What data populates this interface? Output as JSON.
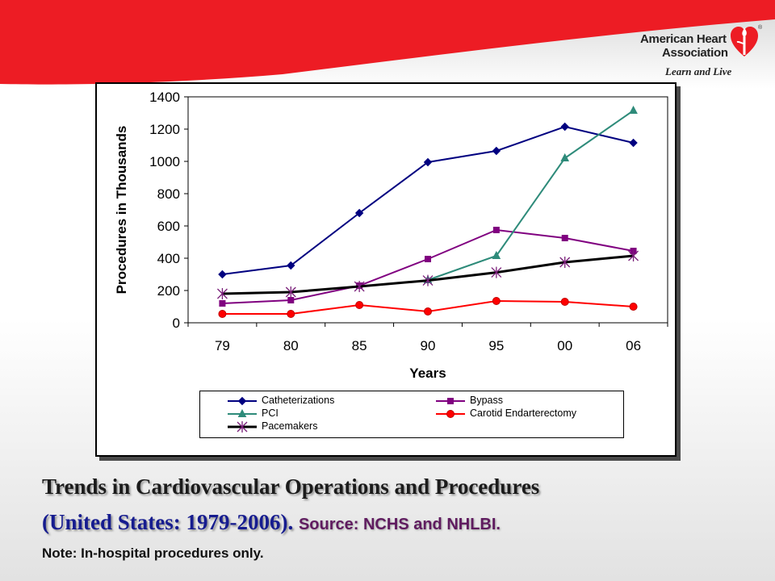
{
  "branding": {
    "org_line1": "American Heart",
    "org_line2": "Association",
    "tagline": "Learn and Live",
    "reg_mark": "®",
    "accent_color": "#ed1c24"
  },
  "caption": {
    "title_line1": "Trends in Cardiovascular Operations and Procedures",
    "title_line2": "(United States: 1979-2006).",
    "source": "Source: NCHS and NHLBI.",
    "note": "Note: In-hospital procedures only."
  },
  "chart_data": {
    "type": "line",
    "title": "",
    "xlabel": "Years",
    "ylabel": "Procedures in Thousands",
    "categories": [
      "79",
      "80",
      "85",
      "90",
      "95",
      "00",
      "06"
    ],
    "ylim": [
      0,
      1400
    ],
    "yticks": [
      "0",
      "200",
      "400",
      "600",
      "800",
      "1000",
      "1200",
      "1400"
    ],
    "grid": false,
    "legend_position": "bottom",
    "series": [
      {
        "name": "Catheterizations",
        "color": "#000080",
        "marker": "diamond",
        "values": [
          300,
          355,
          680,
          995,
          1065,
          1215,
          1115
        ]
      },
      {
        "name": "Bypass",
        "color": "#800080",
        "marker": "square",
        "values": [
          120,
          140,
          230,
          395,
          575,
          525,
          445
        ]
      },
      {
        "name": "PCI",
        "color": "#2e8b7a",
        "marker": "triangle",
        "values": [
          null,
          null,
          null,
          265,
          415,
          1020,
          1315
        ]
      },
      {
        "name": "Carotid Endarterectomy",
        "color": "#ff0000",
        "marker": "circle",
        "values": [
          55,
          55,
          110,
          70,
          135,
          130,
          100
        ]
      },
      {
        "name": "Pacemakers",
        "color": "#000000",
        "marker": "star",
        "values": [
          180,
          190,
          225,
          262,
          312,
          375,
          415
        ]
      }
    ]
  }
}
